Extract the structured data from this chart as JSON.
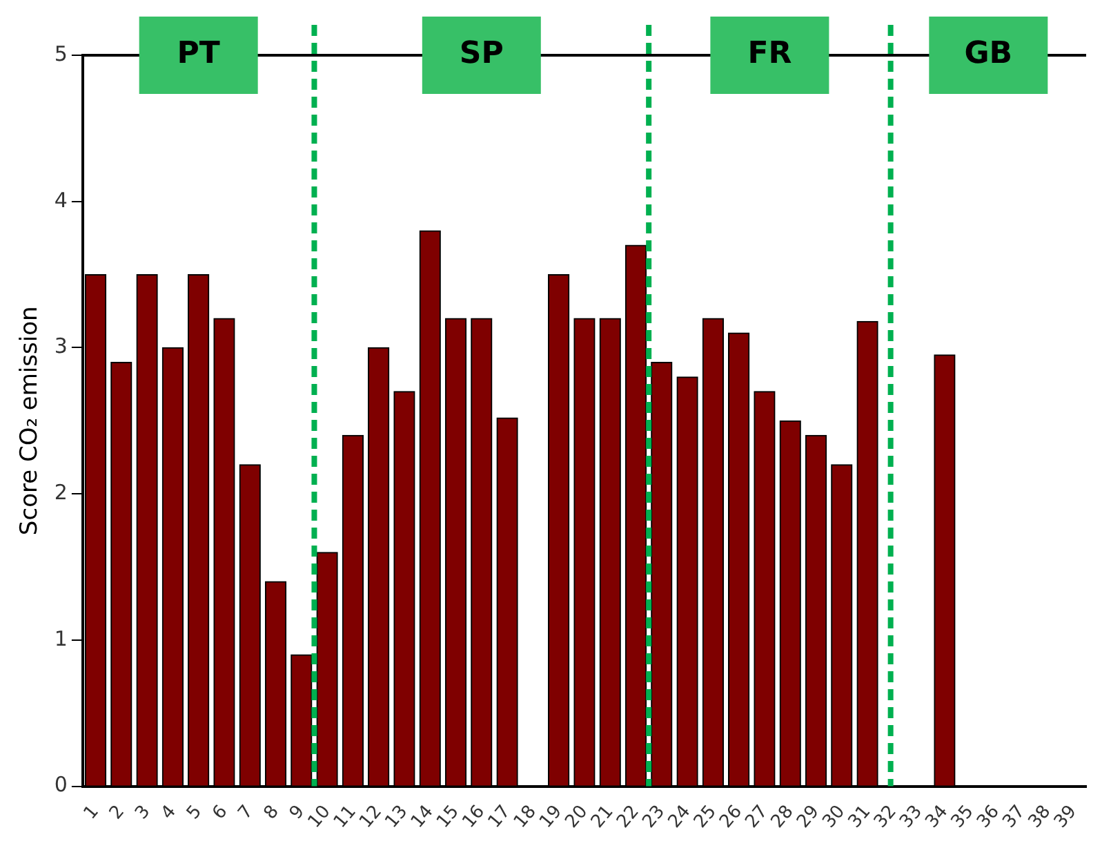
{
  "chart_data": {
    "type": "bar",
    "ylabel": "Score CO₂ emission",
    "x": [
      1,
      2,
      3,
      4,
      5,
      6,
      7,
      8,
      9,
      10,
      11,
      12,
      13,
      14,
      15,
      16,
      17,
      19,
      20,
      21,
      22,
      23,
      24,
      25,
      26,
      27,
      28,
      29,
      30,
      31,
      34
    ],
    "values": [
      3.5,
      2.9,
      3.5,
      3.0,
      3.5,
      3.2,
      2.2,
      1.4,
      0.9,
      1.6,
      2.4,
      3.0,
      2.7,
      3.8,
      3.2,
      3.2,
      2.52,
      3.5,
      3.2,
      3.2,
      3.7,
      2.9,
      2.8,
      3.2,
      3.1,
      2.7,
      2.5,
      2.4,
      2.2,
      3.18,
      2.95
    ],
    "color": "#7f0000",
    "xlim": [
      0.5,
      39.5
    ],
    "xticks": [
      1,
      2,
      3,
      4,
      5,
      6,
      7,
      8,
      9,
      10,
      11,
      12,
      13,
      14,
      15,
      16,
      17,
      18,
      19,
      20,
      21,
      22,
      23,
      24,
      25,
      26,
      27,
      28,
      29,
      30,
      31,
      32,
      33,
      34,
      35,
      36,
      37,
      38,
      39
    ],
    "ylim": [
      0,
      5
    ],
    "yticks": [
      0,
      1,
      2,
      3,
      4,
      5
    ],
    "ref_lines": [
      {
        "axis": "x",
        "value": 9.5,
        "color": "#00b050",
        "line_style": "dashed"
      },
      {
        "axis": "x",
        "value": 22.5,
        "color": "#00b050",
        "line_style": "dashed"
      },
      {
        "axis": "x",
        "value": 31.9,
        "color": "#00b050",
        "line_style": "dashed"
      }
    ],
    "annotations": [
      "PT",
      "SP",
      "FR",
      "GB"
    ],
    "grid": false,
    "legend": false
  }
}
